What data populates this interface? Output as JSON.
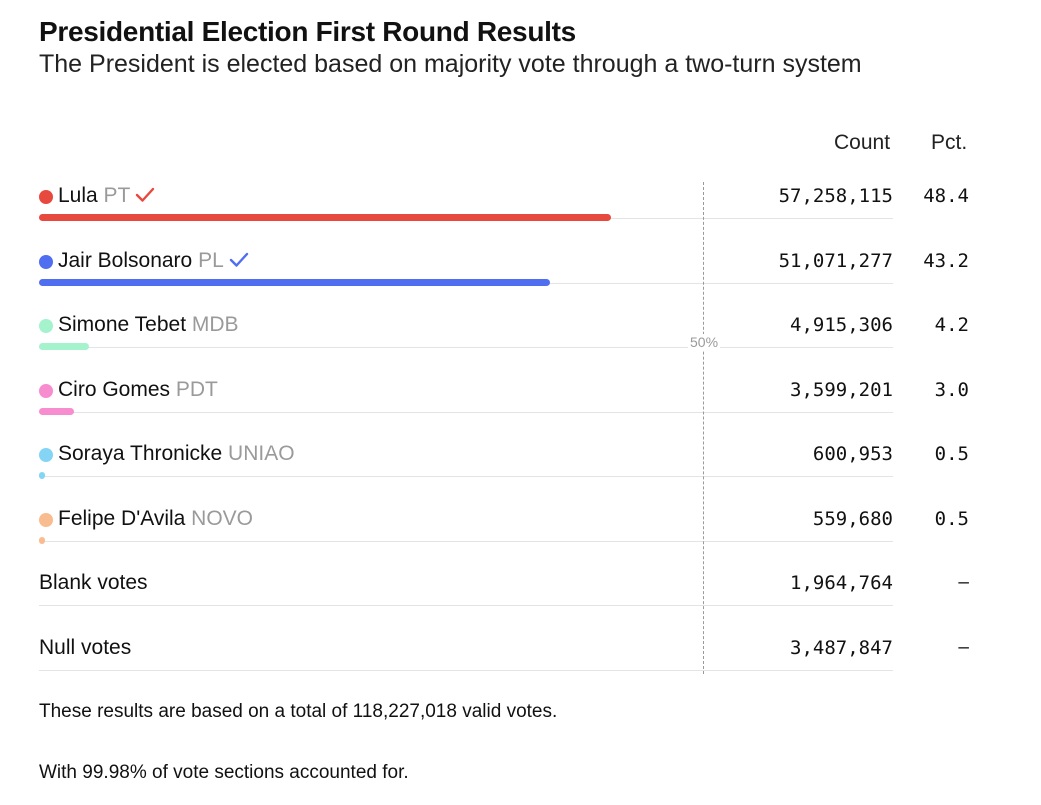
{
  "title": "Presidential Election First Round Results",
  "subtitle": "The President is elected based on majority vote through a two-turn system",
  "headers": {
    "count": "Count",
    "pct": "Pct."
  },
  "midline_label": "50%",
  "chart_data": {
    "type": "bar",
    "title": "Presidential Election First Round Results",
    "subtitle": "The President is elected based on majority vote through a two-turn system",
    "xlim": [
      0,
      100
    ],
    "reference_line": 50,
    "rows": [
      {
        "name": "Lula",
        "party": "PT",
        "count": "57,258,115",
        "pct": "48.4",
        "value": 48.4,
        "color": "#e8493e",
        "checked": true,
        "check_color": "#e8493e"
      },
      {
        "name": "Jair Bolsonaro",
        "party": "PL",
        "count": "51,071,277",
        "pct": "43.2",
        "value": 43.2,
        "color": "#4f6ef0",
        "checked": true,
        "check_color": "#4f6ef0"
      },
      {
        "name": "Simone Tebet",
        "party": "MDB",
        "count": "4,915,306",
        "pct": "4.2",
        "value": 4.2,
        "color": "#a4f3cd",
        "checked": false
      },
      {
        "name": "Ciro Gomes",
        "party": "PDT",
        "count": "3,599,201",
        "pct": "3.0",
        "value": 3.0,
        "color": "#f78ccf",
        "checked": false
      },
      {
        "name": "Soraya Thronicke",
        "party": "UNIAO",
        "count": "600,953",
        "pct": "0.5",
        "value": 0.5,
        "color": "#84d4f6",
        "checked": false
      },
      {
        "name": "Felipe D'Avila",
        "party": "NOVO",
        "count": "559,680",
        "pct": "0.5",
        "value": 0.5,
        "color": "#f9bc8f",
        "checked": false
      },
      {
        "name": "Blank votes",
        "party": "",
        "count": "1,964,764",
        "pct": "–",
        "value": null,
        "color": "",
        "checked": false
      },
      {
        "name": "Null votes",
        "party": "",
        "count": "3,487,847",
        "pct": "–",
        "value": null,
        "color": "",
        "checked": false
      }
    ]
  },
  "footer": {
    "note1": "These results are based on a total of 118,227,018 valid votes.",
    "note2": "With 99.98% of vote sections accounted for."
  }
}
